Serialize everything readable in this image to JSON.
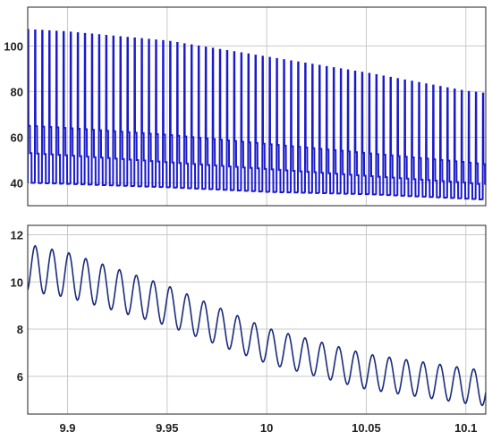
{
  "chart_data": [
    {
      "type": "line",
      "title": "",
      "xlabel": "",
      "ylabel": "",
      "xlim": [
        9.88,
        10.11
      ],
      "ylim": [
        30,
        117
      ],
      "x_ticks": [
        9.9,
        9.95,
        10,
        10.05,
        10.1
      ],
      "y_ticks": [
        40,
        60,
        80,
        100
      ],
      "y_tick_labels": [
        "40",
        "60",
        "80",
        "100"
      ],
      "grid": true,
      "pulse_period": 0.00357,
      "series": [
        {
          "color": "#1a1acc",
          "x": [
            9.88,
            9.9,
            9.95,
            10,
            10.05,
            10.1,
            10.11
          ],
          "peak": [
            107,
            106,
            102,
            95,
            88,
            80,
            79
          ],
          "upper_level": [
            65,
            64,
            61,
            57,
            53,
            49,
            48
          ],
          "mid_level": [
            53,
            52,
            49,
            46,
            43,
            40,
            39
          ],
          "low_level": [
            40,
            39.5,
            38,
            36,
            35,
            33,
            32.5
          ]
        }
      ]
    },
    {
      "type": "line",
      "title": "",
      "xlabel": "",
      "ylabel": "",
      "xlim": [
        9.88,
        10.11
      ],
      "ylim": [
        4.4,
        12.4
      ],
      "x_ticks": [
        9.9,
        9.95,
        10,
        10.05,
        10.1
      ],
      "x_tick_labels": [
        "9.9",
        "9.95",
        "10",
        "10.05",
        "10.1"
      ],
      "y_ticks": [
        6,
        8,
        10,
        12
      ],
      "y_tick_labels": [
        "6",
        "8",
        "10",
        "12"
      ],
      "grid": true,
      "oscillation_period": 0.00847,
      "series": [
        {
          "color": "#1a2a7a",
          "x": [
            9.88,
            9.9,
            9.95,
            10,
            10.05,
            10.1,
            10.11
          ],
          "mean": [
            10.6,
            10.3,
            9.0,
            7.3,
            6.2,
            5.6,
            5.5
          ],
          "amplitude": [
            1.0,
            0.95,
            0.85,
            0.75,
            0.75,
            0.75,
            0.75
          ]
        }
      ]
    }
  ]
}
